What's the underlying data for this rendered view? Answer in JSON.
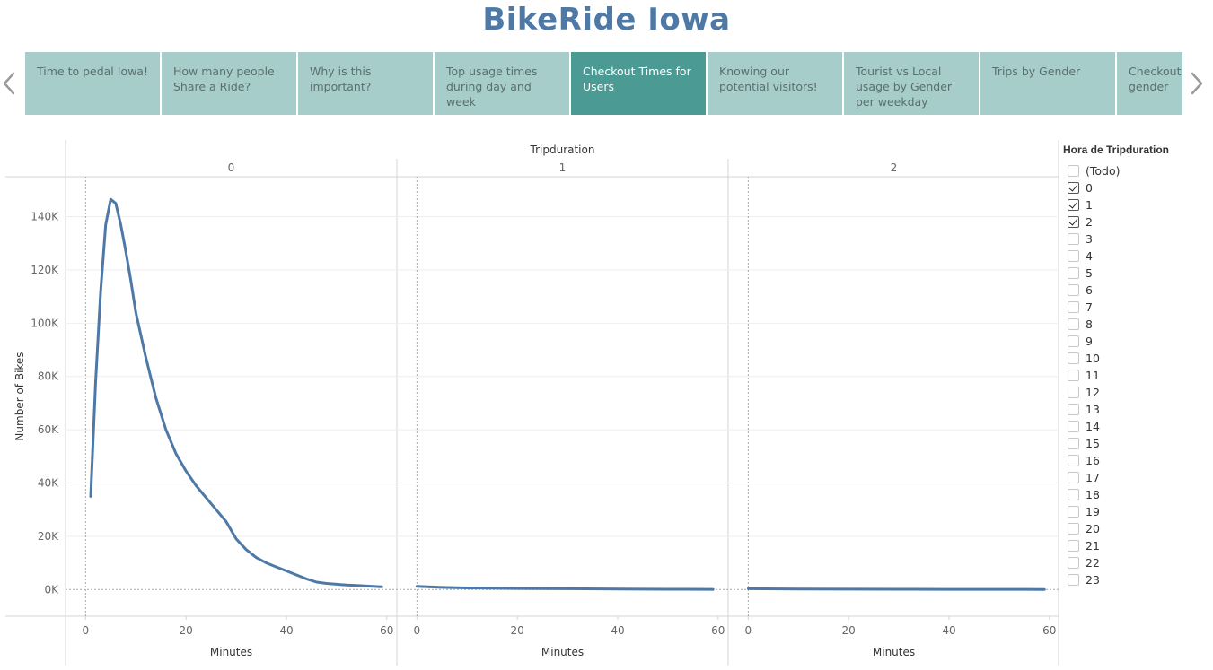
{
  "dashboard": {
    "title": "BikeRide Iowa"
  },
  "tabs": [
    {
      "label": "Time to pedal Iowa!"
    },
    {
      "label": "How many people Share a Ride?"
    },
    {
      "label": "Why is this important?"
    },
    {
      "label": "Top usage times during day and week"
    },
    {
      "label": "Checkout Times for Users",
      "active": true
    },
    {
      "label": "Knowing our potential visitors!"
    },
    {
      "label": "Tourist vs Local usage by Gender per weekday"
    },
    {
      "label": "Trips by Gender"
    },
    {
      "label": "Checkout times by gender"
    }
  ],
  "icons": {
    "prev": "chevron-left-icon",
    "next": "chevron-right-icon"
  },
  "filter": {
    "title": "Hora de Tripduration",
    "items": [
      {
        "label": "(Todo)",
        "checked": false
      },
      {
        "label": "0",
        "checked": true
      },
      {
        "label": "1",
        "checked": true
      },
      {
        "label": "2",
        "checked": true
      },
      {
        "label": "3",
        "checked": false
      },
      {
        "label": "4",
        "checked": false
      },
      {
        "label": "5",
        "checked": false
      },
      {
        "label": "6",
        "checked": false
      },
      {
        "label": "7",
        "checked": false
      },
      {
        "label": "8",
        "checked": false
      },
      {
        "label": "9",
        "checked": false
      },
      {
        "label": "10",
        "checked": false
      },
      {
        "label": "11",
        "checked": false
      },
      {
        "label": "12",
        "checked": false
      },
      {
        "label": "13",
        "checked": false
      },
      {
        "label": "14",
        "checked": false
      },
      {
        "label": "15",
        "checked": false
      },
      {
        "label": "16",
        "checked": false
      },
      {
        "label": "17",
        "checked": false
      },
      {
        "label": "18",
        "checked": false
      },
      {
        "label": "19",
        "checked": false
      },
      {
        "label": "20",
        "checked": false
      },
      {
        "label": "21",
        "checked": false
      },
      {
        "label": "22",
        "checked": false
      },
      {
        "label": "23",
        "checked": false
      }
    ]
  },
  "colors": {
    "accent": "#4e79a7",
    "tab": "#a6cdca",
    "tab_active": "#4b9b94"
  },
  "chart_data": {
    "type": "line",
    "header_label": "Tripduration",
    "xlabel": "Minutes",
    "ylabel": "Number of Bikes",
    "xlim": [
      -4,
      62
    ],
    "ylim": [
      -10000,
      155000
    ],
    "x_ticks": [
      0,
      20,
      40,
      60
    ],
    "y_ticks": [
      0,
      20000,
      40000,
      60000,
      80000,
      100000,
      120000,
      140000
    ],
    "y_tick_labels": [
      "0K",
      "20K",
      "40K",
      "60K",
      "80K",
      "100K",
      "120K",
      "140K"
    ],
    "grid": true,
    "panels": [
      {
        "label": "0",
        "x": [
          1,
          2,
          3,
          4,
          5,
          6,
          7,
          8,
          9,
          10,
          12,
          14,
          16,
          18,
          20,
          22,
          24,
          26,
          28,
          30,
          32,
          34,
          36,
          38,
          40,
          42,
          44,
          46,
          48,
          50,
          52,
          54,
          56,
          58,
          59
        ],
        "y": [
          35000,
          78000,
          112000,
          137000,
          146500,
          145000,
          137000,
          127000,
          116000,
          104000,
          87000,
          72000,
          60000,
          51000,
          44500,
          39000,
          34500,
          30000,
          25500,
          19000,
          15000,
          12000,
          10000,
          8500,
          7000,
          5500,
          4000,
          2800,
          2300,
          2000,
          1700,
          1500,
          1300,
          1100,
          1000
        ]
      },
      {
        "label": "1",
        "x": [
          0,
          5,
          10,
          20,
          30,
          40,
          50,
          59
        ],
        "y": [
          1200,
          800,
          600,
          400,
          300,
          200,
          100,
          60
        ]
      },
      {
        "label": "2",
        "x": [
          0,
          10,
          20,
          30,
          40,
          50,
          59
        ],
        "y": [
          300,
          200,
          150,
          100,
          80,
          60,
          40
        ]
      }
    ]
  }
}
